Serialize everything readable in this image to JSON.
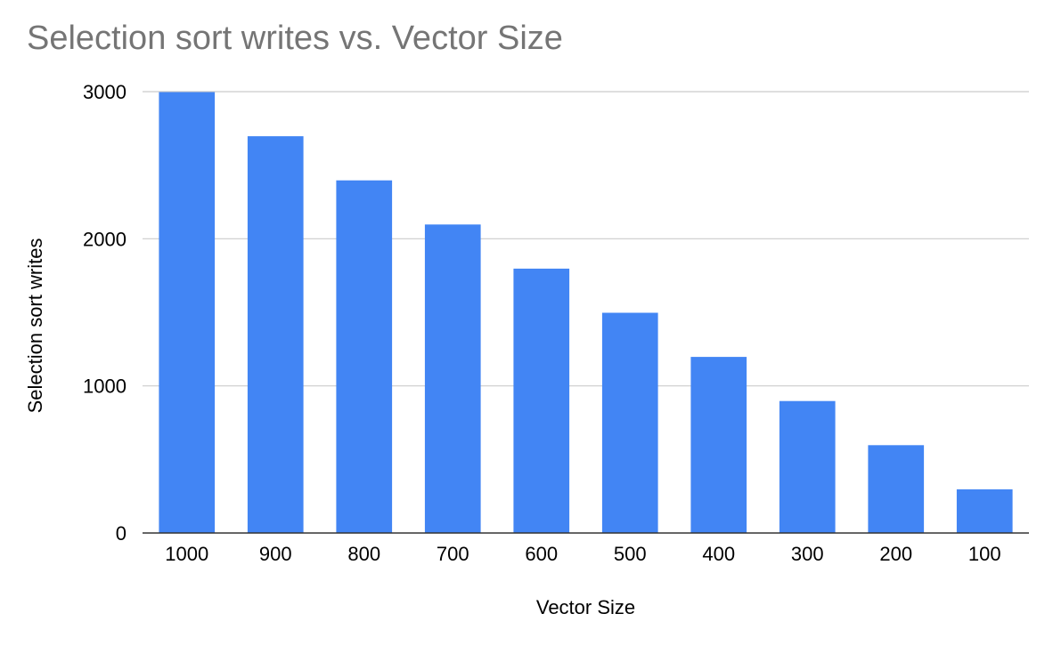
{
  "chart_data": {
    "type": "bar",
    "title": "Selection sort writes vs. Vector Size",
    "xlabel": "Vector Size",
    "ylabel": "Selection sort writes",
    "categories": [
      "1000",
      "900",
      "800",
      "700",
      "600",
      "500",
      "400",
      "300",
      "200",
      "100"
    ],
    "values": [
      2997,
      2697,
      2397,
      2097,
      1797,
      1497,
      1197,
      897,
      597,
      297
    ],
    "ylim": [
      0,
      3000
    ],
    "yticks": [
      "0",
      "1000",
      "2000",
      "3000"
    ],
    "grid": true,
    "legend": "none",
    "colors": {
      "bar": "#4285f4",
      "grid": "#cccccc",
      "axis": "#333333",
      "title": "#757575"
    }
  }
}
